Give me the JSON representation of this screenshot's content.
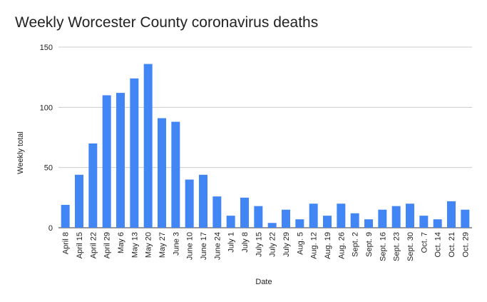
{
  "chart_data": {
    "type": "bar",
    "title": "Weekly Worcester County coronavirus deaths",
    "xlabel": "Date",
    "ylabel": "Weekly total",
    "ylim": [
      0,
      150
    ],
    "yticks": [
      0,
      50,
      100,
      150
    ],
    "grid": true,
    "bar_color": "#4285f4",
    "categories": [
      "April 8",
      "April 15",
      "April 22",
      "April 29",
      "May 6",
      "May 13",
      "May 20",
      "May 27",
      "June 3",
      "June 10",
      "June 17",
      "June 24",
      "July 1",
      "July 8",
      "July 15",
      "July 22",
      "July 29",
      "Aug. 5",
      "Aug. 12",
      "Aug. 19",
      "Aug. 26",
      "Sept. 2",
      "Sept. 9",
      "Sept. 16",
      "Sept. 23",
      "Sept. 30",
      "Oct. 7",
      "Oct. 14",
      "Oct. 21",
      "Oct. 29"
    ],
    "values": [
      19,
      44,
      70,
      110,
      112,
      124,
      136,
      91,
      88,
      40,
      44,
      26,
      10,
      25,
      18,
      4,
      15,
      7,
      20,
      10,
      20,
      12,
      7,
      15,
      18,
      20,
      10,
      7,
      22,
      15
    ]
  }
}
